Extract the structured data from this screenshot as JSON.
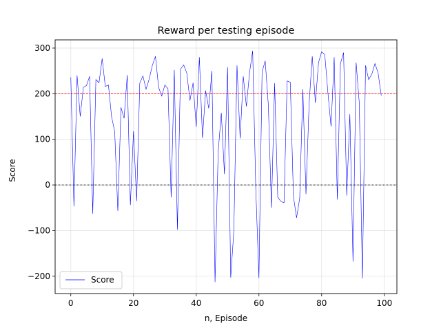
{
  "chart_data": {
    "type": "line",
    "title": "Reward per testing episode",
    "xlabel": "n, Episode",
    "ylabel": "Score",
    "xlim": [
      -5,
      104
    ],
    "ylim": [
      -238,
      318
    ],
    "xticks": [
      0,
      20,
      40,
      60,
      80,
      100
    ],
    "yticks": [
      -200,
      -100,
      0,
      100,
      200,
      300
    ],
    "ytick_labels": [
      "−200",
      "−100",
      "0",
      "100",
      "200",
      "300"
    ],
    "grid": true,
    "legend": {
      "position": "lower-left",
      "entries": [
        "Score"
      ]
    },
    "reference_lines": [
      {
        "y": 200,
        "color": "#ff0000",
        "style": "dashed"
      },
      {
        "y": 0,
        "color": "#000000",
        "style": "dotted"
      }
    ],
    "series": [
      {
        "name": "Score",
        "color": "#0000ff",
        "x": [
          0,
          1,
          2,
          3,
          4,
          5,
          6,
          7,
          8,
          9,
          10,
          11,
          12,
          13,
          14,
          15,
          16,
          17,
          18,
          19,
          20,
          21,
          22,
          23,
          24,
          25,
          26,
          27,
          28,
          29,
          30,
          31,
          32,
          33,
          34,
          35,
          36,
          37,
          38,
          39,
          40,
          41,
          42,
          43,
          44,
          45,
          46,
          47,
          48,
          49,
          50,
          51,
          52,
          53,
          54,
          55,
          56,
          57,
          58,
          59,
          60,
          61,
          62,
          63,
          64,
          65,
          66,
          67,
          68,
          69,
          70,
          71,
          72,
          73,
          74,
          75,
          76,
          77,
          78,
          79,
          80,
          81,
          82,
          83,
          84,
          85,
          86,
          87,
          88,
          89,
          90,
          91,
          92,
          93,
          94,
          95,
          96,
          97,
          98,
          99
        ],
        "values": [
          236,
          -47,
          240,
          150,
          214,
          218,
          238,
          -63,
          231,
          224,
          277,
          216,
          219,
          150,
          117,
          -57,
          170,
          146,
          241,
          -44,
          118,
          -35,
          223,
          239,
          210,
          232,
          262,
          282,
          214,
          195,
          219,
          211,
          -27,
          252,
          -98,
          254,
          263,
          245,
          185,
          224,
          127,
          280,
          103,
          207,
          168,
          250,
          -213,
          72,
          158,
          24,
          258,
          -203,
          -100,
          262,
          102,
          238,
          172,
          246,
          294,
          -10,
          -204,
          248,
          272,
          175,
          -50,
          223,
          -27,
          -36,
          -39,
          228,
          225,
          -25,
          -72,
          -29,
          210,
          -20,
          178,
          282,
          180,
          268,
          292,
          286,
          202,
          128,
          280,
          -32,
          266,
          290,
          -23,
          155,
          -168,
          268,
          180,
          -205,
          262,
          231,
          243,
          266,
          246,
          196
        ]
      }
    ]
  }
}
